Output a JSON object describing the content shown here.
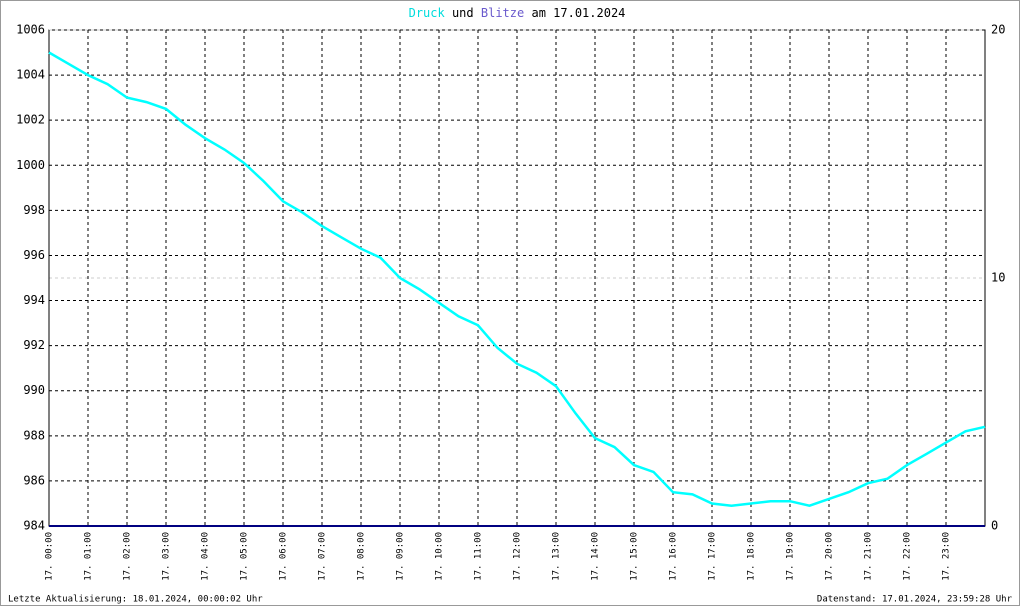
{
  "chart_data": {
    "type": "line",
    "title_parts": [
      "und",
      "am 17.01.2024"
    ],
    "footer_left": "Letzte Aktualisierung: 18.01.2024, 00:00:02 Uhr",
    "footer_right": "Datenstand: 17.01.2024, 23:59:28 Uhr",
    "x": [
      0,
      0.5,
      1,
      1.5,
      2,
      2.5,
      3,
      3.5,
      4,
      4.5,
      5,
      5.5,
      6,
      6.5,
      7,
      7.5,
      8,
      8.5,
      9,
      9.5,
      10,
      10.5,
      11,
      11.5,
      12,
      12.5,
      13,
      13.5,
      14,
      14.5,
      15,
      15.5,
      16,
      16.5,
      17,
      17.5,
      18,
      18.5,
      19,
      19.5,
      20,
      20.5,
      21,
      21.5,
      22,
      22.5,
      23,
      23.5,
      24
    ],
    "series": [
      {
        "name": "Druck",
        "color": "#00ffff",
        "values": [
          1005.0,
          1004.5,
          1004.0,
          1003.6,
          1003.0,
          1002.8,
          1002.5,
          1001.8,
          1001.2,
          1000.7,
          1000.1,
          999.3,
          998.4,
          997.9,
          997.3,
          996.8,
          996.3,
          995.9,
          995.0,
          994.5,
          993.9,
          993.3,
          992.9,
          991.9,
          991.2,
          990.8,
          990.2,
          989.0,
          987.9,
          987.5,
          986.7,
          986.4,
          985.5,
          985.4,
          985.0,
          984.9,
          985.0,
          985.1,
          985.1,
          984.9,
          985.2,
          985.5,
          985.9,
          986.1,
          986.7,
          987.2,
          987.7,
          988.2,
          988.4
        ]
      },
      {
        "name": "Blitze",
        "color": "#000080",
        "axis": "y2",
        "values": [
          0,
          0,
          0,
          0,
          0,
          0,
          0,
          0,
          0,
          0,
          0,
          0,
          0,
          0,
          0,
          0,
          0,
          0,
          0,
          0,
          0,
          0,
          0,
          0,
          0,
          0,
          0,
          0,
          0,
          0,
          0,
          0,
          0,
          0,
          0,
          0,
          0,
          0,
          0,
          0,
          0,
          0,
          0,
          0,
          0,
          0,
          0,
          0,
          0
        ]
      }
    ],
    "xlim": [
      0,
      24
    ],
    "xticks": [
      {
        "value": 0,
        "label": "17. 00:00"
      },
      {
        "value": 1,
        "label": "17. 01:00"
      },
      {
        "value": 2,
        "label": "17. 02:00"
      },
      {
        "value": 3,
        "label": "17. 03:00"
      },
      {
        "value": 4,
        "label": "17. 04:00"
      },
      {
        "value": 5,
        "label": "17. 05:00"
      },
      {
        "value": 6,
        "label": "17. 06:00"
      },
      {
        "value": 7,
        "label": "17. 07:00"
      },
      {
        "value": 8,
        "label": "17. 08:00"
      },
      {
        "value": 9,
        "label": "17. 09:00"
      },
      {
        "value": 10,
        "label": "17. 10:00"
      },
      {
        "value": 11,
        "label": "17. 11:00"
      },
      {
        "value": 12,
        "label": "17. 12:00"
      },
      {
        "value": 13,
        "label": "17. 13:00"
      },
      {
        "value": 14,
        "label": "17. 14:00"
      },
      {
        "value": 15,
        "label": "17. 15:00"
      },
      {
        "value": 16,
        "label": "17. 16:00"
      },
      {
        "value": 17,
        "label": "17. 17:00"
      },
      {
        "value": 18,
        "label": "17. 18:00"
      },
      {
        "value": 19,
        "label": "17. 19:00"
      },
      {
        "value": 20,
        "label": "17. 20:00"
      },
      {
        "value": 21,
        "label": "17. 21:00"
      },
      {
        "value": 22,
        "label": "17. 22:00"
      },
      {
        "value": 23,
        "label": "17. 23:00"
      }
    ],
    "ylim": [
      984,
      1006
    ],
    "yticks": [
      984,
      986,
      988,
      990,
      992,
      994,
      996,
      998,
      1000,
      1002,
      1004,
      1006
    ],
    "y2lim": [
      0,
      20
    ],
    "y2ticks": [
      0,
      10,
      20
    ],
    "grid": true
  }
}
